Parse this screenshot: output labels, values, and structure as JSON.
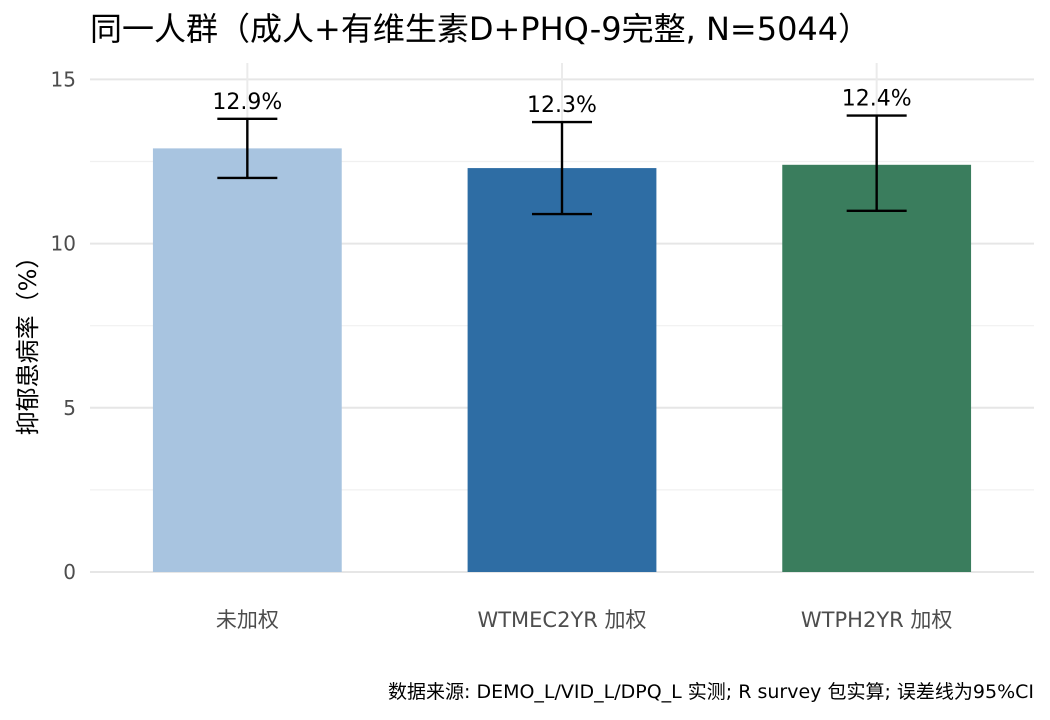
{
  "chart_data": {
    "type": "bar",
    "title": "同一人群（成人+有维生素D+PHQ-9完整, N=5044）",
    "ylabel": "抑郁患病率（%）",
    "xlabel": "",
    "categories": [
      "未加权",
      "WTMEC2YR 加权",
      "WTPH2YR 加权"
    ],
    "values": [
      12.9,
      12.3,
      12.4
    ],
    "data_labels": [
      "12.9%",
      "12.3%",
      "12.4%"
    ],
    "ci_lower": [
      12.0,
      10.9,
      11.0
    ],
    "ci_upper": [
      13.8,
      13.7,
      13.9
    ],
    "ylim": [
      0,
      15.5
    ],
    "yticks": [
      0,
      5,
      10,
      15
    ],
    "grid": true,
    "colors": [
      "#a8c4e0",
      "#2e6da4",
      "#3a7d5d"
    ],
    "caption": "数据来源: DEMO_L/VID_L/DPQ_L 实测; R survey 包实算; 误差线为95%CI"
  }
}
